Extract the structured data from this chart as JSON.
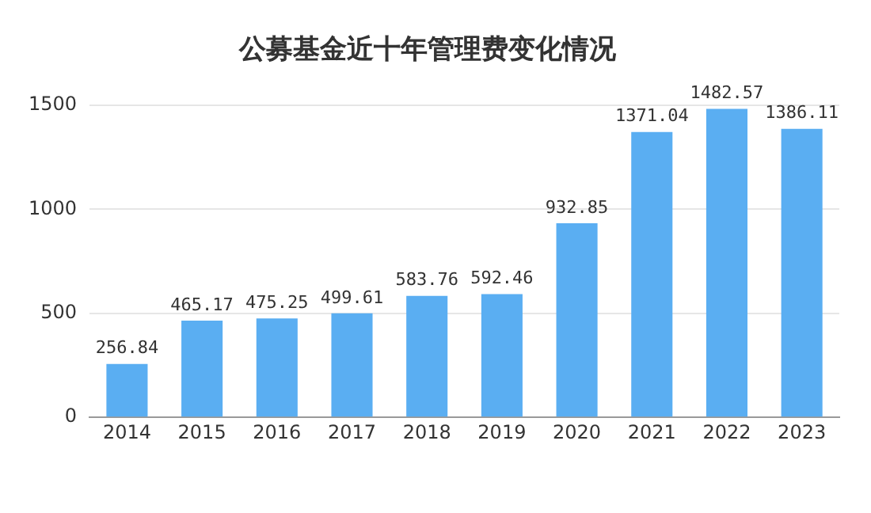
{
  "chart_data": {
    "type": "bar",
    "title": "公募基金近十年管理费变化情况",
    "categories": [
      "2014",
      "2015",
      "2016",
      "2017",
      "2018",
      "2019",
      "2020",
      "2021",
      "2022",
      "2023"
    ],
    "values": [
      256.84,
      465.17,
      475.25,
      499.61,
      583.76,
      592.46,
      932.85,
      1371.04,
      1482.57,
      1386.11
    ],
    "color": "#5aaef2",
    "ylim": [
      0,
      1500
    ],
    "yticks": [
      0,
      500,
      1000,
      1500
    ],
    "grid": "y",
    "data_labels": true,
    "legend": false
  }
}
